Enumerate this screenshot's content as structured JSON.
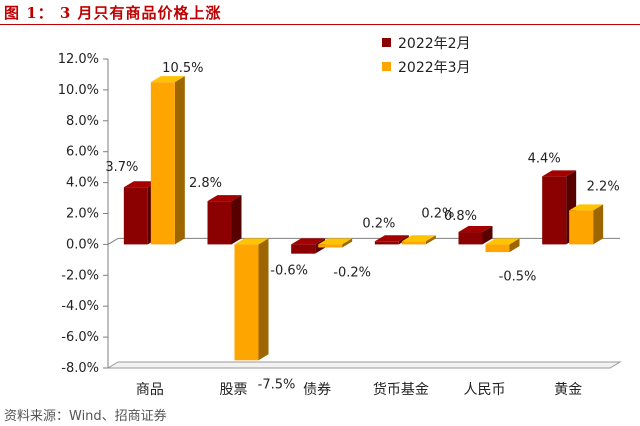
{
  "figure_title": "图 1： 3 月只有商品价格上涨",
  "source_note": "资料来源：Wind、招商证券",
  "colors": {
    "series_2022_2": "#8b0000",
    "series_2022_3": "#ffa500",
    "title_color": "#c00000"
  },
  "chart_data": {
    "type": "bar",
    "title": "",
    "xlabel": "",
    "ylabel": "",
    "categories": [
      "商品",
      "股票",
      "债券",
      "货币基金",
      "人民币",
      "黄金"
    ],
    "series": [
      {
        "name": "2022年2月",
        "values": [
          3.7,
          2.8,
          -0.6,
          0.2,
          0.8,
          4.4
        ]
      },
      {
        "name": "2022年3月",
        "values": [
          10.5,
          -7.5,
          -0.2,
          0.2,
          -0.5,
          2.2
        ]
      }
    ],
    "data_labels": [
      [
        "3.7%",
        "2.8%",
        "-0.6%",
        "0.2%",
        "0.8%",
        "4.4%"
      ],
      [
        "10.5%",
        "-7.5%",
        "-0.2%",
        "0.2%",
        "-0.5%",
        "2.2%"
      ]
    ],
    "ylim": [
      -8,
      12
    ],
    "yticks": [
      -8,
      -6,
      -4,
      -2,
      0,
      2,
      4,
      6,
      8,
      10,
      12
    ],
    "ytick_labels": [
      "-8.0%",
      "-6.0%",
      "-4.0%",
      "-2.0%",
      "0.0%",
      "2.0%",
      "4.0%",
      "6.0%",
      "8.0%",
      "10.0%",
      "12.0%"
    ],
    "legend_position": "top-right",
    "grid": false
  }
}
